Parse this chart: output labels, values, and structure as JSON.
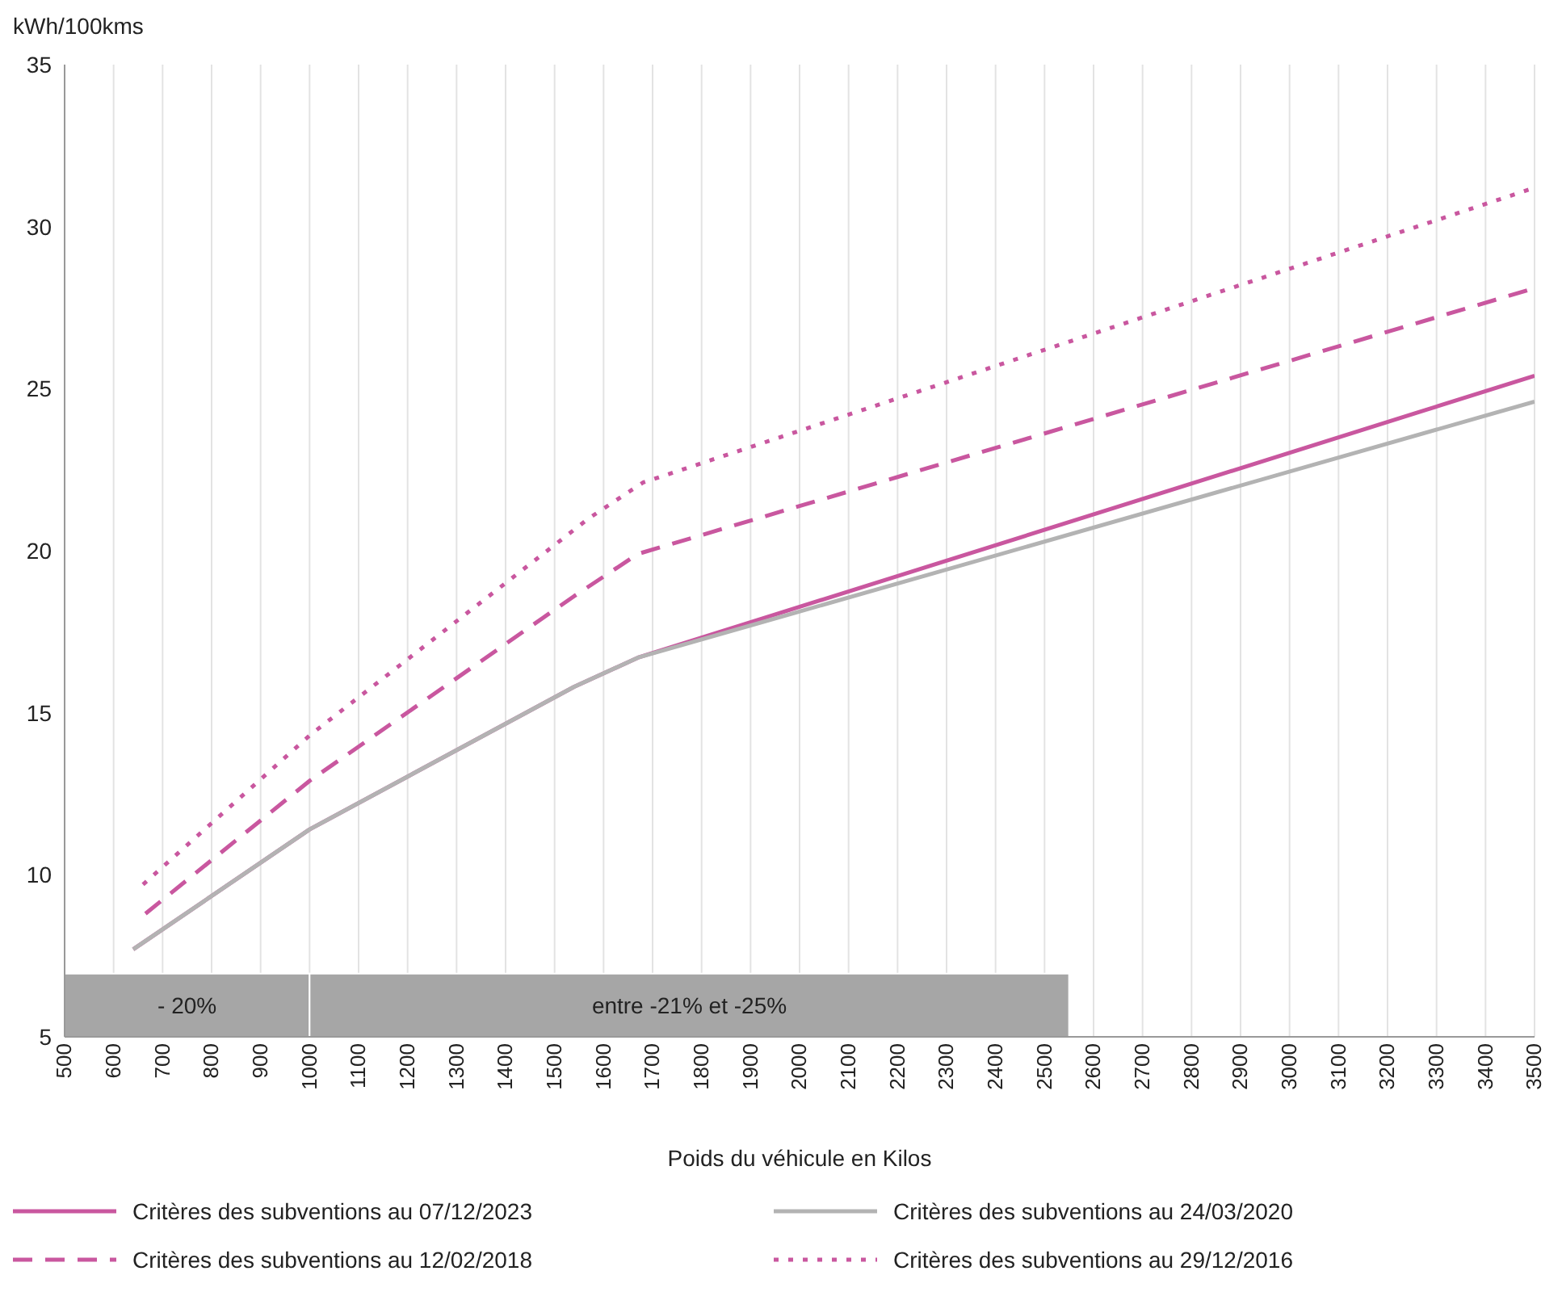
{
  "chart_data": {
    "type": "line",
    "ylabel": "kWh/100kms",
    "xlabel": "Poids du véhicule en Kilos",
    "xlim": [
      500,
      3500
    ],
    "xticks": [
      500,
      600,
      700,
      800,
      900,
      1000,
      1100,
      1200,
      1300,
      1400,
      1500,
      1600,
      1700,
      1800,
      1900,
      2000,
      2100,
      2200,
      2300,
      2400,
      2500,
      2600,
      2700,
      2800,
      2900,
      3000,
      3100,
      3200,
      3300,
      3400,
      3500
    ],
    "ylim": [
      5,
      35
    ],
    "yticks": [
      5,
      10,
      15,
      20,
      25,
      30,
      35
    ],
    "grid": "x",
    "legend": "bottom",
    "marker": "none",
    "series": [
      {
        "name": "Critères des subventions au 07/12/2023",
        "color": "#c9579f",
        "line_style": "solid",
        "x": [
          640,
          1000,
          1540,
          1670,
          3500
        ],
        "values": [
          7.7,
          11.4,
          15.8,
          16.7,
          25.4
        ]
      },
      {
        "name": "Critères des subventions au 24/03/2020",
        "color": "#b3b3b3",
        "line_style": "solid",
        "x": [
          640,
          1000,
          1540,
          1670,
          3500
        ],
        "values": [
          7.7,
          11.4,
          15.8,
          16.7,
          24.6
        ]
      },
      {
        "name": "Critères des subventions au 12/02/2018",
        "color": "#c9579f",
        "line_style": "dashed",
        "x": [
          665,
          1000,
          1540,
          1670,
          3500
        ],
        "values": [
          8.8,
          12.9,
          18.6,
          19.9,
          28.1
        ]
      },
      {
        "name": "Critères des subventions au 29/12/2016",
        "color": "#c9579f",
        "line_style": "dotted",
        "x": [
          660,
          1000,
          1570,
          1680,
          3500
        ],
        "values": [
          9.7,
          14.3,
          21.0,
          22.1,
          31.2
        ]
      }
    ],
    "bands": [
      {
        "axis": "x",
        "from": 500,
        "to": 1000,
        "label": "- 20%",
        "color": "#a6a6a6"
      },
      {
        "axis": "x",
        "from": 1000,
        "to": 2550,
        "label": "entre -21% et -25%",
        "color": "#a6a6a6"
      }
    ]
  }
}
